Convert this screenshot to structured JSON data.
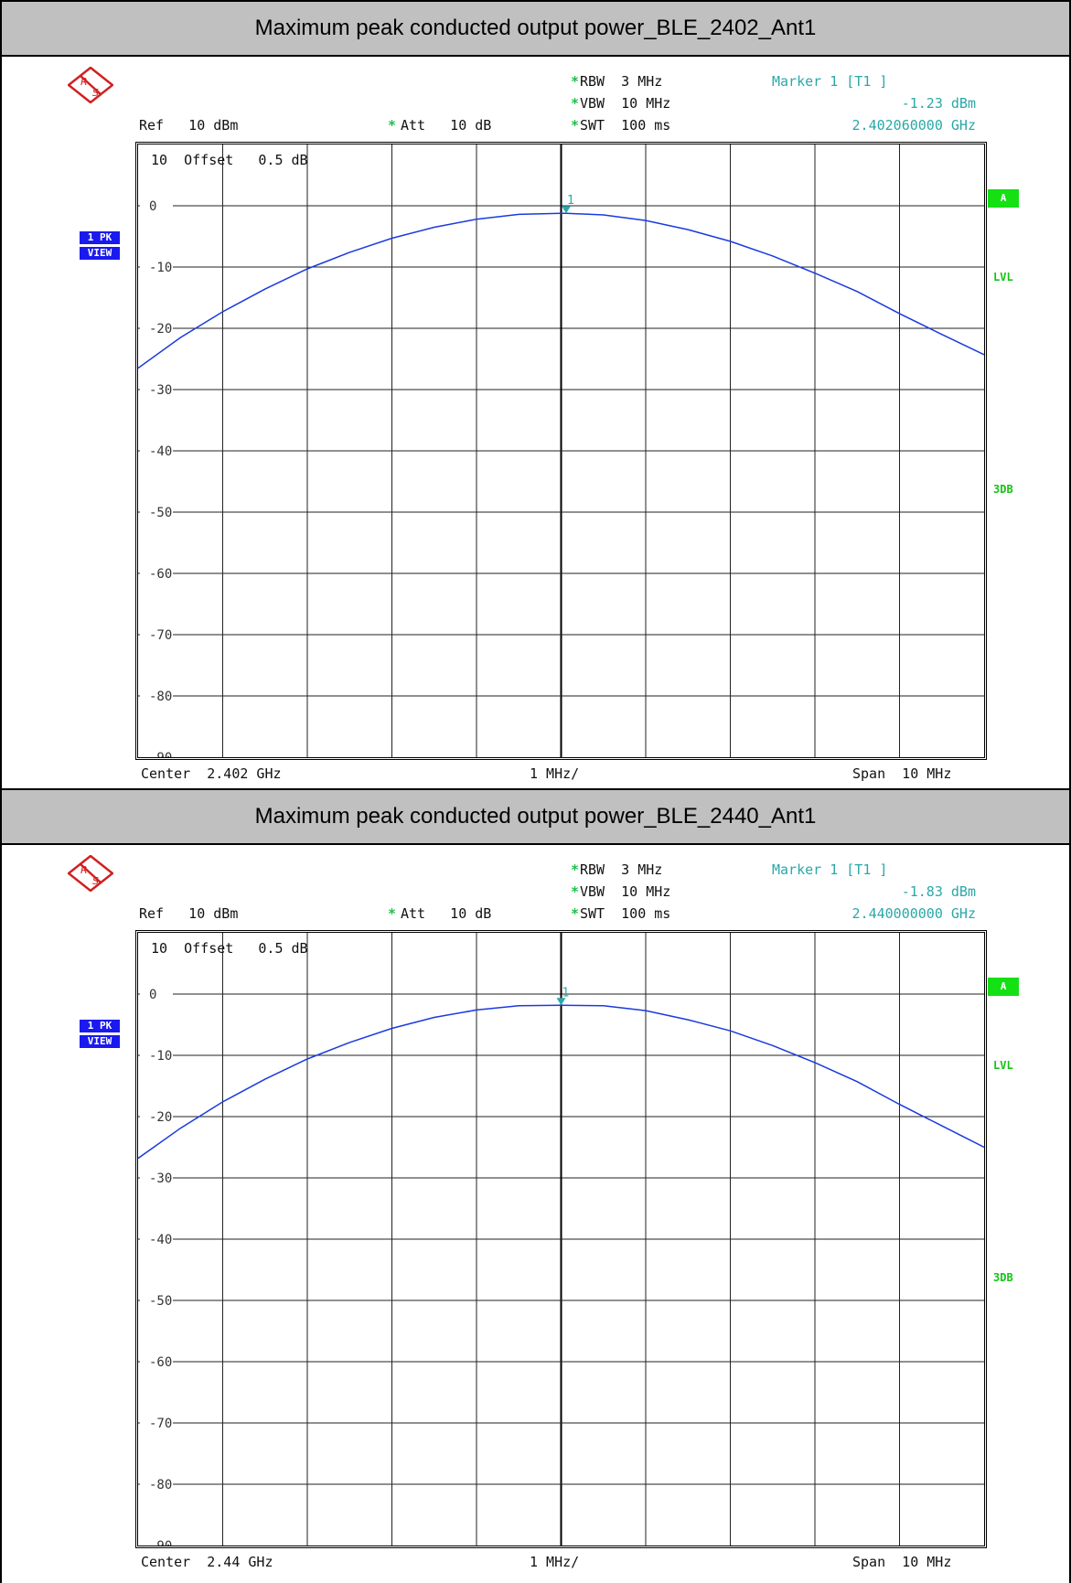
{
  "panels": [
    {
      "title": "Maximum peak conducted output power_BLE_2402_Ant1",
      "rbw": "RBW  3 MHz",
      "vbw": "VBW  10 MHz",
      "swt": "SWT  100 ms",
      "marker_label": "Marker 1 [T1 ]",
      "marker_value": "-1.23 dBm",
      "marker_freq": "2.402060000 GHz",
      "ref": "Ref   10 dBm",
      "att": "Att   10 dB",
      "offset": "Offset   0.5 dB",
      "trace_tag_1": "1 PK",
      "trace_tag_2": "VIEW",
      "side_a": "A",
      "side_lvl": "LVL",
      "side_3db": "3DB",
      "center": "Center  2.402 GHz",
      "per_div": "1 MHz/",
      "span": "Span  10 MHz",
      "marker_num": "1"
    },
    {
      "title": "Maximum peak conducted output power_BLE_2440_Ant1",
      "rbw": "RBW  3 MHz",
      "vbw": "VBW  10 MHz",
      "swt": "SWT  100 ms",
      "marker_label": "Marker 1 [T1 ]",
      "marker_value": "-1.83 dBm",
      "marker_freq": "2.440000000 GHz",
      "ref": "Ref   10 dBm",
      "att": "Att   10 dB",
      "offset": "Offset   0.5 dB",
      "trace_tag_1": "1 PK",
      "trace_tag_2": "VIEW",
      "side_a": "A",
      "side_lvl": "LVL",
      "side_3db": "3DB",
      "center": "Center  2.44 GHz",
      "per_div": "1 MHz/",
      "span": "Span  10 MHz",
      "marker_num": "1"
    }
  ],
  "colors": {
    "trace": "#1a3ae0",
    "marker": "#2aa8a8",
    "grid": "#000000",
    "title_bg": "#c0c0c0",
    "status_green": "#14c414",
    "trace_box": "#1a1aee"
  },
  "chart_data": [
    {
      "type": "line",
      "title": "Maximum peak conducted output power_BLE_2402_Ant1",
      "x_unit": "MHz offset from center",
      "xlim": [
        -5,
        5
      ],
      "ylim": [
        -90,
        10
      ],
      "y_ticks": [
        "10",
        "0",
        "-10",
        "-20",
        "-30",
        "-40",
        "-50",
        "-60",
        "-70",
        "-80",
        "-90"
      ],
      "grid": true,
      "series": [
        {
          "x": [
            -5,
            -4.5,
            -4,
            -3.5,
            -3,
            -2.5,
            -2,
            -1.5,
            -1,
            -0.5,
            0,
            0.06,
            0.5,
            1,
            1.5,
            2,
            2.5,
            3,
            3.5,
            4,
            4.5,
            5
          ],
          "y": [
            -26.5,
            -21.5,
            -17.3,
            -13.6,
            -10.3,
            -7.6,
            -5.3,
            -3.5,
            -2.2,
            -1.4,
            -1.24,
            -1.23,
            -1.5,
            -2.4,
            -3.9,
            -5.8,
            -8.2,
            -11.0,
            -14.0,
            -17.6,
            -21.0,
            -24.3
          ]
        }
      ],
      "marker": {
        "x": 0.06,
        "y": -1.23
      }
    },
    {
      "type": "line",
      "title": "Maximum peak conducted output power_BLE_2440_Ant1",
      "x_unit": "MHz offset from center",
      "xlim": [
        -5,
        5
      ],
      "ylim": [
        -90,
        10
      ],
      "y_ticks": [
        "10",
        "0",
        "-10",
        "-20",
        "-30",
        "-40",
        "-50",
        "-60",
        "-70",
        "-80",
        "-90"
      ],
      "grid": true,
      "series": [
        {
          "x": [
            -5,
            -4.5,
            -4,
            -3.5,
            -3,
            -2.5,
            -2,
            -1.5,
            -1,
            -0.5,
            0,
            0.5,
            1,
            1.5,
            2,
            2.5,
            3,
            3.5,
            4,
            4.5,
            5
          ],
          "y": [
            -26.8,
            -21.9,
            -17.6,
            -13.9,
            -10.6,
            -7.9,
            -5.6,
            -3.8,
            -2.6,
            -1.9,
            -1.83,
            -1.9,
            -2.7,
            -4.2,
            -6.0,
            -8.4,
            -11.2,
            -14.3,
            -18.0,
            -21.5,
            -25.0
          ]
        }
      ],
      "marker": {
        "x": 0.0,
        "y": -1.83
      }
    }
  ]
}
